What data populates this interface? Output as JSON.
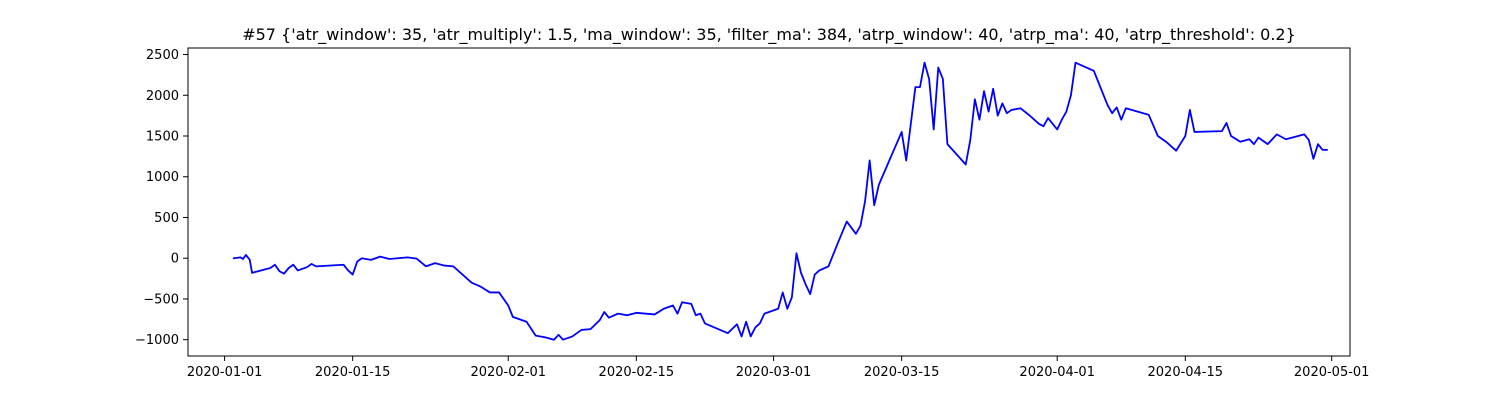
{
  "chart_data": {
    "type": "line",
    "title": "#57 {'atr_window': 35, 'atr_multiply': 1.5, 'ma_window': 35, 'filter_ma': 384, 'atrp_window': 40, 'atrp_ma': 40, 'atrp_threshold': 0.2}",
    "xlabel": "",
    "ylabel": "",
    "x_axis_type": "date",
    "xlim": [
      "2019-12-28",
      "2020-05-03"
    ],
    "ylim": [
      -1200,
      2580
    ],
    "grid": false,
    "legend": "none",
    "x_ticks": [
      "2020-01-01",
      "2020-01-15",
      "2020-02-01",
      "2020-02-15",
      "2020-03-01",
      "2020-03-15",
      "2020-04-01",
      "2020-04-15",
      "2020-05-01"
    ],
    "y_ticks": [
      -1000,
      -500,
      0,
      500,
      1000,
      1500,
      2000,
      2500
    ],
    "series": [
      {
        "color": "#0000ff",
        "points": [
          [
            "2020-01-02",
            0
          ],
          [
            "2020-01-02T18:00",
            10
          ],
          [
            "2020-01-03",
            -10
          ],
          [
            "2020-01-03T08:00",
            40
          ],
          [
            "2020-01-03T18:00",
            -20
          ],
          [
            "2020-01-04",
            -180
          ],
          [
            "2020-01-06",
            -120
          ],
          [
            "2020-01-06T12:00",
            -80
          ],
          [
            "2020-01-07",
            -160
          ],
          [
            "2020-01-07T12:00",
            -190
          ],
          [
            "2020-01-08",
            -120
          ],
          [
            "2020-01-08T12:00",
            -80
          ],
          [
            "2020-01-09",
            -150
          ],
          [
            "2020-01-10",
            -110
          ],
          [
            "2020-01-10T12:00",
            -70
          ],
          [
            "2020-01-11",
            -100
          ],
          [
            "2020-01-14",
            -80
          ],
          [
            "2020-01-14T12:00",
            -150
          ],
          [
            "2020-01-15",
            -200
          ],
          [
            "2020-01-15T12:00",
            -40
          ],
          [
            "2020-01-16",
            0
          ],
          [
            "2020-01-17",
            -20
          ],
          [
            "2020-01-18",
            20
          ],
          [
            "2020-01-19",
            -10
          ],
          [
            "2020-01-21",
            10
          ],
          [
            "2020-01-22",
            -5
          ],
          [
            "2020-01-23",
            -100
          ],
          [
            "2020-01-24",
            -60
          ],
          [
            "2020-01-25",
            -90
          ],
          [
            "2020-01-26",
            -100
          ],
          [
            "2020-01-27",
            -200
          ],
          [
            "2020-01-28",
            -300
          ],
          [
            "2020-01-29",
            -350
          ],
          [
            "2020-01-30",
            -420
          ],
          [
            "2020-01-31",
            -420
          ],
          [
            "2020-02-01",
            -580
          ],
          [
            "2020-02-01T12:00",
            -720
          ],
          [
            "2020-02-03",
            -780
          ],
          [
            "2020-02-04",
            -950
          ],
          [
            "2020-02-05",
            -970
          ],
          [
            "2020-02-06",
            -1000
          ],
          [
            "2020-02-06T12:00",
            -940
          ],
          [
            "2020-02-07",
            -1000
          ],
          [
            "2020-02-08",
            -960
          ],
          [
            "2020-02-09",
            -880
          ],
          [
            "2020-02-10",
            -870
          ],
          [
            "2020-02-11",
            -760
          ],
          [
            "2020-02-11T12:00",
            -660
          ],
          [
            "2020-02-12",
            -730
          ],
          [
            "2020-02-13",
            -680
          ],
          [
            "2020-02-14",
            -700
          ],
          [
            "2020-02-15",
            -670
          ],
          [
            "2020-02-17",
            -690
          ],
          [
            "2020-02-18",
            -620
          ],
          [
            "2020-02-19",
            -580
          ],
          [
            "2020-02-19T12:00",
            -680
          ],
          [
            "2020-02-20",
            -540
          ],
          [
            "2020-02-21",
            -560
          ],
          [
            "2020-02-21T12:00",
            -700
          ],
          [
            "2020-02-22",
            -680
          ],
          [
            "2020-02-22T12:00",
            -800
          ],
          [
            "2020-02-25",
            -920
          ],
          [
            "2020-02-26",
            -810
          ],
          [
            "2020-02-26T12:00",
            -960
          ],
          [
            "2020-02-27",
            -780
          ],
          [
            "2020-02-27T12:00",
            -960
          ],
          [
            "2020-02-28",
            -850
          ],
          [
            "2020-02-28T12:00",
            -800
          ],
          [
            "2020-02-29",
            -680
          ],
          [
            "2020-03-01",
            -640
          ],
          [
            "2020-03-01T12:00",
            -620
          ],
          [
            "2020-03-02",
            -420
          ],
          [
            "2020-03-02T12:00",
            -620
          ],
          [
            "2020-03-03",
            -480
          ],
          [
            "2020-03-03T12:00",
            60
          ],
          [
            "2020-03-04",
            -180
          ],
          [
            "2020-03-04T12:00",
            -320
          ],
          [
            "2020-03-05",
            -440
          ],
          [
            "2020-03-05T12:00",
            -200
          ],
          [
            "2020-03-06",
            -150
          ],
          [
            "2020-03-07",
            -100
          ],
          [
            "2020-03-08",
            180
          ],
          [
            "2020-03-09",
            450
          ],
          [
            "2020-03-10",
            300
          ],
          [
            "2020-03-10T12:00",
            400
          ],
          [
            "2020-03-11",
            700
          ],
          [
            "2020-03-11T12:00",
            1200
          ],
          [
            "2020-03-12",
            650
          ],
          [
            "2020-03-12T12:00",
            900
          ],
          [
            "2020-03-15",
            1550
          ],
          [
            "2020-03-15T12:00",
            1200
          ],
          [
            "2020-03-16",
            1650
          ],
          [
            "2020-03-16T12:00",
            2100
          ],
          [
            "2020-03-17",
            2100
          ],
          [
            "2020-03-17T12:00",
            2400
          ],
          [
            "2020-03-18",
            2200
          ],
          [
            "2020-03-18T12:00",
            1580
          ],
          [
            "2020-03-19",
            2340
          ],
          [
            "2020-03-19T12:00",
            2200
          ],
          [
            "2020-03-20",
            1400
          ],
          [
            "2020-03-22",
            1150
          ],
          [
            "2020-03-22T12:00",
            1450
          ],
          [
            "2020-03-23",
            1950
          ],
          [
            "2020-03-23T12:00",
            1700
          ],
          [
            "2020-03-24",
            2050
          ],
          [
            "2020-03-24T12:00",
            1800
          ],
          [
            "2020-03-25",
            2080
          ],
          [
            "2020-03-25T12:00",
            1750
          ],
          [
            "2020-03-26",
            1900
          ],
          [
            "2020-03-26T12:00",
            1780
          ],
          [
            "2020-03-27",
            1820
          ],
          [
            "2020-03-28",
            1840
          ],
          [
            "2020-03-29",
            1750
          ],
          [
            "2020-03-30",
            1650
          ],
          [
            "2020-03-30T12:00",
            1620
          ],
          [
            "2020-03-31",
            1720
          ],
          [
            "2020-04-01",
            1580
          ],
          [
            "2020-04-01T12:00",
            1700
          ],
          [
            "2020-04-02",
            1800
          ],
          [
            "2020-04-02T12:00",
            2000
          ],
          [
            "2020-04-03",
            2400
          ],
          [
            "2020-04-05",
            2300
          ],
          [
            "2020-04-06",
            2020
          ],
          [
            "2020-04-06T12:00",
            1880
          ],
          [
            "2020-04-07",
            1780
          ],
          [
            "2020-04-07T12:00",
            1850
          ],
          [
            "2020-04-08",
            1700
          ],
          [
            "2020-04-08T12:00",
            1840
          ],
          [
            "2020-04-11",
            1760
          ],
          [
            "2020-04-12",
            1500
          ],
          [
            "2020-04-13",
            1420
          ],
          [
            "2020-04-14",
            1320
          ],
          [
            "2020-04-15",
            1500
          ],
          [
            "2020-04-15T12:00",
            1820
          ],
          [
            "2020-04-16",
            1550
          ],
          [
            "2020-04-19",
            1560
          ],
          [
            "2020-04-19T12:00",
            1660
          ],
          [
            "2020-04-20",
            1500
          ],
          [
            "2020-04-21",
            1430
          ],
          [
            "2020-04-22",
            1460
          ],
          [
            "2020-04-22T12:00",
            1400
          ],
          [
            "2020-04-23",
            1480
          ],
          [
            "2020-04-24",
            1400
          ],
          [
            "2020-04-25",
            1520
          ],
          [
            "2020-04-26",
            1460
          ],
          [
            "2020-04-28",
            1520
          ],
          [
            "2020-04-28T12:00",
            1450
          ],
          [
            "2020-04-29",
            1220
          ],
          [
            "2020-04-29T12:00",
            1400
          ],
          [
            "2020-04-30",
            1330
          ],
          [
            "2020-04-30T12:00",
            1330
          ]
        ]
      }
    ]
  }
}
